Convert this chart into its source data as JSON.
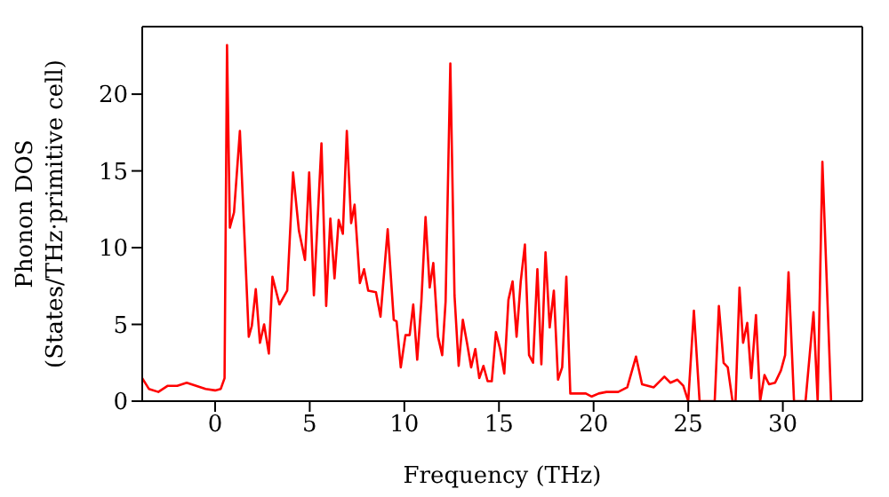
{
  "chart_data": {
    "type": "line",
    "xlabel": "Frequency (THz)",
    "ylabel": "Phonon DOS (States/THz·primitive cell)",
    "xlim": [
      -3.85,
      34.2
    ],
    "xticks": [
      0,
      5,
      10,
      15,
      20,
      25,
      30
    ],
    "ylim": [
      0,
      24.4
    ],
    "yticks": [
      0,
      5,
      10,
      15,
      20
    ],
    "marker": "none",
    "line_style": "solid",
    "series": [
      {
        "color": "#ff0000",
        "x": [
          -3.85,
          -3.5,
          -3,
          -2.5,
          -2,
          -1.5,
          -1,
          -0.5,
          0,
          0.3,
          0.5,
          0.63,
          0.78,
          1.0,
          1.31,
          1.78,
          1.94,
          2.15,
          2.37,
          2.59,
          2.84,
          3.03,
          3.4,
          3.81,
          4.12,
          4.43,
          4.75,
          4.97,
          5.22,
          5.62,
          5.87,
          6.09,
          6.31,
          6.53,
          6.75,
          6.96,
          7.19,
          7.37,
          7.65,
          7.87,
          8.09,
          8.5,
          8.74,
          9.12,
          9.44,
          9.59,
          9.81,
          10.06,
          10.28,
          10.47,
          10.68,
          10.9,
          11.12,
          11.34,
          11.53,
          11.78,
          12.0,
          12.18,
          12.43,
          12.65,
          12.87,
          13.09,
          13.31,
          13.53,
          13.75,
          13.96,
          14.18,
          14.4,
          14.62,
          14.84,
          15.06,
          15.28,
          15.5,
          15.72,
          15.93,
          16.15,
          16.37,
          16.59,
          16.8,
          17.03,
          17.24,
          17.46,
          17.68,
          17.9,
          18.12,
          18.34,
          18.56,
          18.77,
          19.59,
          19.9,
          20.27,
          20.68,
          21.3,
          21.78,
          22.24,
          22.56,
          23.18,
          23.74,
          24.06,
          24.43,
          24.74,
          25.0,
          25.3,
          25.6,
          26.4,
          26.62,
          26.87,
          27.09,
          27.34,
          27.5,
          27.71,
          27.9,
          28.12,
          28.33,
          28.58,
          28.8,
          29.03,
          29.27,
          29.59,
          29.9,
          30.12,
          30.3,
          30.59,
          31.2,
          31.62,
          31.84,
          32.09,
          32.55
        ],
        "values": [
          1.5,
          0.8,
          0.6,
          1.0,
          1.0,
          1.2,
          1.0,
          0.8,
          0.7,
          0.8,
          1.5,
          23.2,
          11.3,
          12.3,
          17.6,
          4.2,
          4.9,
          7.3,
          3.8,
          5.0,
          3.1,
          8.1,
          6.3,
          7.2,
          14.9,
          11.1,
          9.2,
          14.9,
          6.9,
          16.8,
          6.2,
          11.9,
          8.0,
          11.8,
          10.9,
          17.6,
          11.6,
          12.8,
          7.7,
          8.6,
          7.2,
          7.1,
          5.5,
          11.2,
          5.3,
          5.2,
          2.2,
          4.3,
          4.3,
          6.3,
          2.7,
          6.5,
          12.0,
          7.4,
          9.0,
          4.2,
          3.0,
          6.5,
          22.0,
          6.9,
          2.3,
          5.3,
          3.8,
          2.2,
          3.4,
          1.5,
          2.3,
          1.3,
          1.3,
          4.5,
          3.4,
          1.8,
          6.6,
          7.8,
          4.2,
          7.8,
          10.2,
          3.0,
          2.5,
          8.6,
          2.4,
          9.7,
          4.8,
          7.2,
          1.4,
          2.2,
          8.1,
          0.5,
          0.5,
          0.3,
          0.5,
          0.6,
          0.6,
          0.9,
          2.9,
          1.1,
          0.9,
          1.6,
          1.2,
          1.4,
          1.0,
          0,
          5.9,
          0,
          0,
          6.2,
          2.5,
          2.2,
          0,
          0,
          7.4,
          3.8,
          5.1,
          1.5,
          5.6,
          0,
          1.7,
          1.1,
          1.2,
          2.0,
          3.0,
          8.4,
          0,
          0,
          5.8,
          0,
          15.6,
          0
        ]
      }
    ]
  }
}
